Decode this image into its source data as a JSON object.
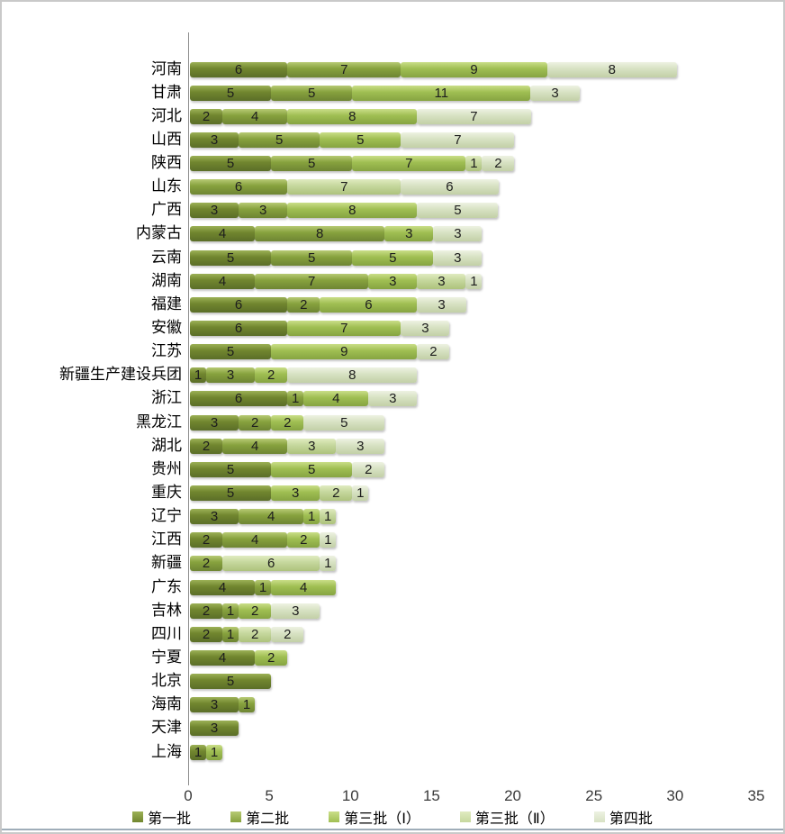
{
  "chart_data": {
    "type": "bar",
    "orientation": "horizontal",
    "stacked": true,
    "title": "",
    "xlabel": "",
    "ylabel": "",
    "xlim": [
      0,
      35
    ],
    "x_ticks": [
      "0",
      "5",
      "10",
      "15",
      "20",
      "25",
      "30",
      "35"
    ],
    "grid": false,
    "legend_position": "bottom",
    "series_names": [
      "第一批",
      "第二批",
      "第三批（Ⅰ）",
      "第三批（Ⅱ）",
      "第四批"
    ],
    "series_colors": [
      "#71862f",
      "#87a23e",
      "#a0bf53",
      "#c6d89e",
      "#d8e2c4"
    ],
    "series_colors_top": [
      "#9cb156",
      "#b7ca74",
      "#cade88",
      "#e0ebc0",
      "#edf2e2"
    ],
    "series_colors_bottom": [
      "#5b6e28",
      "#6e8533",
      "#86a441",
      "#adc27c",
      "#c2d0a6"
    ],
    "rows": [
      {
        "label": "河南",
        "segments": [
          {
            "series": "第一批",
            "value": 6
          },
          {
            "series": "第二批",
            "value": 7
          },
          {
            "series": "第三批（Ⅰ）",
            "value": 9
          },
          {
            "series": "第四批",
            "value": 8
          }
        ]
      },
      {
        "label": "甘肃",
        "segments": [
          {
            "series": "第一批",
            "value": 5
          },
          {
            "series": "第二批",
            "value": 5
          },
          {
            "series": "第三批（Ⅰ）",
            "value": 11
          },
          {
            "series": "第四批",
            "value": 3
          }
        ]
      },
      {
        "label": "河北",
        "segments": [
          {
            "series": "第一批",
            "value": 2
          },
          {
            "series": "第二批",
            "value": 4
          },
          {
            "series": "第三批（Ⅰ）",
            "value": 8
          },
          {
            "series": "第四批",
            "value": 7
          }
        ]
      },
      {
        "label": "山西",
        "segments": [
          {
            "series": "第一批",
            "value": 3
          },
          {
            "series": "第二批",
            "value": 5
          },
          {
            "series": "第三批（Ⅰ）",
            "value": 5
          },
          {
            "series": "第四批",
            "value": 7
          }
        ]
      },
      {
        "label": "陕西",
        "segments": [
          {
            "series": "第一批",
            "value": 5
          },
          {
            "series": "第二批",
            "value": 5
          },
          {
            "series": "第三批（Ⅰ）",
            "value": 7
          },
          {
            "series": "第三批（Ⅱ）",
            "value": 1
          },
          {
            "series": "第四批",
            "value": 2
          }
        ]
      },
      {
        "label": "山东",
        "segments": [
          {
            "series": "第二批",
            "value": 6
          },
          {
            "series": "第三批（Ⅱ）",
            "value": 7
          },
          {
            "series": "第四批",
            "value": 6
          }
        ]
      },
      {
        "label": "广西",
        "segments": [
          {
            "series": "第一批",
            "value": 3
          },
          {
            "series": "第二批",
            "value": 3
          },
          {
            "series": "第三批（Ⅰ）",
            "value": 8
          },
          {
            "series": "第四批",
            "value": 5
          }
        ]
      },
      {
        "label": "内蒙古",
        "segments": [
          {
            "series": "第一批",
            "value": 4
          },
          {
            "series": "第二批",
            "value": 8
          },
          {
            "series": "第三批（Ⅰ）",
            "value": 3
          },
          {
            "series": "第四批",
            "value": 3
          }
        ]
      },
      {
        "label": "云南",
        "segments": [
          {
            "series": "第一批",
            "value": 5
          },
          {
            "series": "第二批",
            "value": 5
          },
          {
            "series": "第三批（Ⅰ）",
            "value": 5
          },
          {
            "series": "第四批",
            "value": 3
          }
        ]
      },
      {
        "label": "湖南",
        "segments": [
          {
            "series": "第一批",
            "value": 4
          },
          {
            "series": "第二批",
            "value": 7
          },
          {
            "series": "第三批（Ⅰ）",
            "value": 3
          },
          {
            "series": "第三批（Ⅱ）",
            "value": 3
          },
          {
            "series": "第四批",
            "value": 1
          }
        ]
      },
      {
        "label": "福建",
        "segments": [
          {
            "series": "第一批",
            "value": 6
          },
          {
            "series": "第二批",
            "value": 2
          },
          {
            "series": "第三批（Ⅰ）",
            "value": 6
          },
          {
            "series": "第四批",
            "value": 3
          }
        ]
      },
      {
        "label": "安徽",
        "segments": [
          {
            "series": "第一批",
            "value": 6
          },
          {
            "series": "第三批（Ⅰ）",
            "value": 7
          },
          {
            "series": "第四批",
            "value": 3
          }
        ]
      },
      {
        "label": "江苏",
        "segments": [
          {
            "series": "第一批",
            "value": 5
          },
          {
            "series": "第三批（Ⅰ）",
            "value": 9
          },
          {
            "series": "第四批",
            "value": 2
          }
        ]
      },
      {
        "label": "新疆生产建设兵团",
        "segments": [
          {
            "series": "第一批",
            "value": 1
          },
          {
            "series": "第二批",
            "value": 3
          },
          {
            "series": "第三批（Ⅰ）",
            "value": 2
          },
          {
            "series": "第四批",
            "value": 8
          }
        ]
      },
      {
        "label": "浙江",
        "segments": [
          {
            "series": "第一批",
            "value": 6
          },
          {
            "series": "第二批",
            "value": 1
          },
          {
            "series": "第三批（Ⅰ）",
            "value": 4
          },
          {
            "series": "第四批",
            "value": 3
          }
        ]
      },
      {
        "label": "黑龙江",
        "segments": [
          {
            "series": "第一批",
            "value": 3
          },
          {
            "series": "第二批",
            "value": 2
          },
          {
            "series": "第三批（Ⅰ）",
            "value": 2
          },
          {
            "series": "第四批",
            "value": 5
          }
        ]
      },
      {
        "label": "湖北",
        "segments": [
          {
            "series": "第一批",
            "value": 2
          },
          {
            "series": "第二批",
            "value": 4
          },
          {
            "series": "第三批（Ⅱ）",
            "value": 3
          },
          {
            "series": "第四批",
            "value": 3
          }
        ]
      },
      {
        "label": "贵州",
        "segments": [
          {
            "series": "第一批",
            "value": 5
          },
          {
            "series": "第三批（Ⅰ）",
            "value": 5
          },
          {
            "series": "第四批",
            "value": 2
          }
        ]
      },
      {
        "label": "重庆",
        "segments": [
          {
            "series": "第一批",
            "value": 5
          },
          {
            "series": "第三批（Ⅰ）",
            "value": 3
          },
          {
            "series": "第三批（Ⅱ）",
            "value": 2
          },
          {
            "series": "第四批",
            "value": 1
          }
        ]
      },
      {
        "label": "辽宁",
        "segments": [
          {
            "series": "第一批",
            "value": 3
          },
          {
            "series": "第二批",
            "value": 4
          },
          {
            "series": "第三批（Ⅰ）",
            "value": 1
          },
          {
            "series": "第三批（Ⅱ）",
            "value": 1
          }
        ]
      },
      {
        "label": "江西",
        "segments": [
          {
            "series": "第一批",
            "value": 2
          },
          {
            "series": "第二批",
            "value": 4
          },
          {
            "series": "第三批（Ⅰ）",
            "value": 2
          },
          {
            "series": "第四批",
            "value": 1
          }
        ]
      },
      {
        "label": "新疆",
        "segments": [
          {
            "series": "第二批",
            "value": 2
          },
          {
            "series": "第三批（Ⅱ）",
            "value": 6
          },
          {
            "series": "第四批",
            "value": 1
          }
        ]
      },
      {
        "label": "广东",
        "segments": [
          {
            "series": "第一批",
            "value": 4
          },
          {
            "series": "第二批",
            "value": 1
          },
          {
            "series": "第三批（Ⅰ）",
            "value": 4
          }
        ]
      },
      {
        "label": "吉林",
        "segments": [
          {
            "series": "第一批",
            "value": 2
          },
          {
            "series": "第二批",
            "value": 1
          },
          {
            "series": "第三批（Ⅰ）",
            "value": 2
          },
          {
            "series": "第四批",
            "value": 3
          }
        ]
      },
      {
        "label": "四川",
        "segments": [
          {
            "series": "第一批",
            "value": 2
          },
          {
            "series": "第二批",
            "value": 1
          },
          {
            "series": "第三批（Ⅱ）",
            "value": 2
          },
          {
            "series": "第四批",
            "value": 2
          }
        ]
      },
      {
        "label": "宁夏",
        "segments": [
          {
            "series": "第一批",
            "value": 4
          },
          {
            "series": "第三批（Ⅰ）",
            "value": 2
          }
        ]
      },
      {
        "label": "北京",
        "segments": [
          {
            "series": "第一批",
            "value": 5
          }
        ]
      },
      {
        "label": "海南",
        "segments": [
          {
            "series": "第一批",
            "value": 3
          },
          {
            "series": "第二批",
            "value": 1
          }
        ]
      },
      {
        "label": "天津",
        "segments": [
          {
            "series": "第一批",
            "value": 3
          }
        ]
      },
      {
        "label": "上海",
        "segments": [
          {
            "series": "第一批",
            "value": 1
          },
          {
            "series": "第三批（Ⅰ）",
            "value": 1
          }
        ]
      }
    ]
  }
}
